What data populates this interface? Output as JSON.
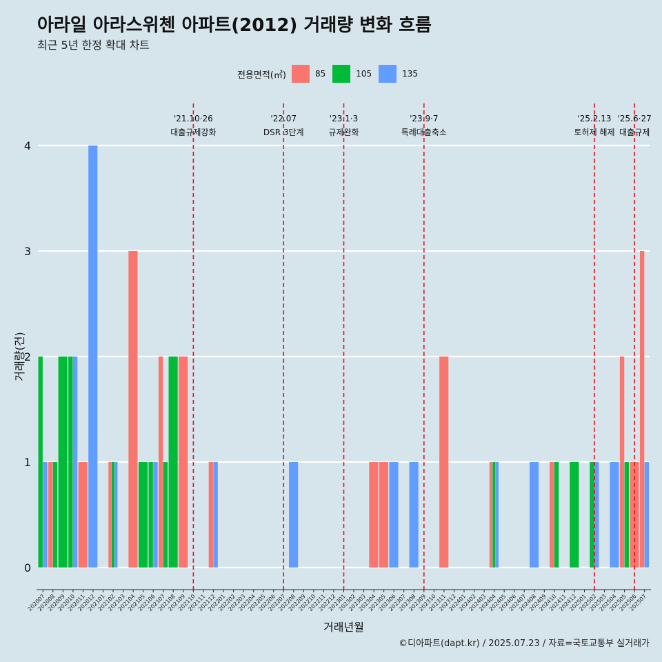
{
  "title": "아라일 아라스위첸 아파트(2012) 거래량 변화 흐름",
  "subtitle": "최근 5년 한정 확대 차트",
  "caption": "©디아파트(dapt.kr) / 2025.07.23 / 자료=국토교통부 실거래가",
  "legend": {
    "title": "전용면적(㎡)",
    "items": [
      {
        "label": "85",
        "color": "#f8766d"
      },
      {
        "label": "105",
        "color": "#00ba38"
      },
      {
        "label": "135",
        "color": "#619cff"
      }
    ]
  },
  "chart_data": {
    "type": "bar",
    "xlabel": "거래년월",
    "ylabel": "거래량(건)",
    "ylim": [
      0,
      4
    ],
    "yticks": [
      0,
      1,
      2,
      3,
      4
    ],
    "grid": true,
    "legend_position": "top",
    "categories": [
      "202007",
      "202008",
      "202009",
      "202010",
      "202011",
      "202012",
      "202101",
      "202102",
      "202103",
      "202104",
      "202105",
      "202106",
      "202107",
      "202108",
      "202109",
      "202110",
      "202111",
      "202112",
      "202201",
      "202202",
      "202203",
      "202204",
      "202205",
      "202206",
      "202207",
      "202208",
      "202209",
      "202210",
      "202211",
      "202212",
      "202301",
      "202302",
      "202303",
      "202304",
      "202305",
      "202306",
      "202307",
      "202308",
      "202309",
      "202310",
      "202311",
      "202312",
      "202401",
      "202402",
      "202403",
      "202404",
      "202405",
      "202406",
      "202407",
      "202408",
      "202409",
      "202410",
      "202411",
      "202412",
      "202501",
      "202502",
      "202503",
      "202504",
      "202505",
      "202506",
      "202507"
    ],
    "series": [
      {
        "name": "85",
        "color": "#f8766d",
        "values": [
          0,
          1,
          0,
          0,
          1,
          0,
          0,
          1,
          0,
          3,
          0,
          0,
          2,
          0,
          2,
          0,
          0,
          1,
          0,
          0,
          0,
          0,
          0,
          0,
          0,
          0,
          0,
          0,
          0,
          0,
          0,
          0,
          0,
          1,
          1,
          0,
          0,
          0,
          0,
          0,
          2,
          0,
          0,
          0,
          0,
          1,
          0,
          0,
          0,
          0,
          0,
          1,
          0,
          0,
          0,
          0,
          0,
          0,
          2,
          1,
          3
        ]
      },
      {
        "name": "105",
        "color": "#00ba38",
        "values": [
          2,
          1,
          2,
          2,
          0,
          0,
          0,
          1,
          0,
          0,
          1,
          1,
          1,
          2,
          0,
          0,
          0,
          0,
          0,
          0,
          0,
          0,
          0,
          0,
          0,
          0,
          0,
          0,
          0,
          0,
          0,
          0,
          0,
          0,
          0,
          0,
          0,
          0,
          0,
          0,
          0,
          0,
          0,
          0,
          0,
          1,
          0,
          0,
          0,
          0,
          0,
          1,
          0,
          1,
          0,
          1,
          0,
          0,
          1,
          0,
          0
        ]
      },
      {
        "name": "135",
        "color": "#619cff",
        "values": [
          1,
          0,
          0,
          2,
          0,
          4,
          0,
          1,
          0,
          0,
          0,
          1,
          0,
          0,
          0,
          0,
          0,
          1,
          0,
          0,
          0,
          0,
          0,
          0,
          0,
          1,
          0,
          0,
          0,
          0,
          0,
          0,
          0,
          0,
          0,
          1,
          0,
          1,
          0,
          0,
          0,
          0,
          0,
          0,
          0,
          1,
          0,
          0,
          0,
          1,
          0,
          0,
          0,
          0,
          0,
          1,
          0,
          1,
          0,
          0,
          1
        ]
      }
    ],
    "events": [
      {
        "label1": "'21.10·26",
        "label2": "대출규제강화",
        "at": 15.5
      },
      {
        "label1": "'22.07",
        "label2": "DSR 3단계",
        "at": 24.5
      },
      {
        "label1": "'23.1·3",
        "label2": "규제완화",
        "at": 30.5
      },
      {
        "label1": "'23.9·7",
        "label2": "특례대출축소",
        "at": 38.5
      },
      {
        "label1": "'25.2.13",
        "label2": "토허제 해제",
        "at": 55.5
      },
      {
        "label1": "'25.6·27",
        "label2": "대출규제",
        "at": 59.5
      }
    ]
  }
}
